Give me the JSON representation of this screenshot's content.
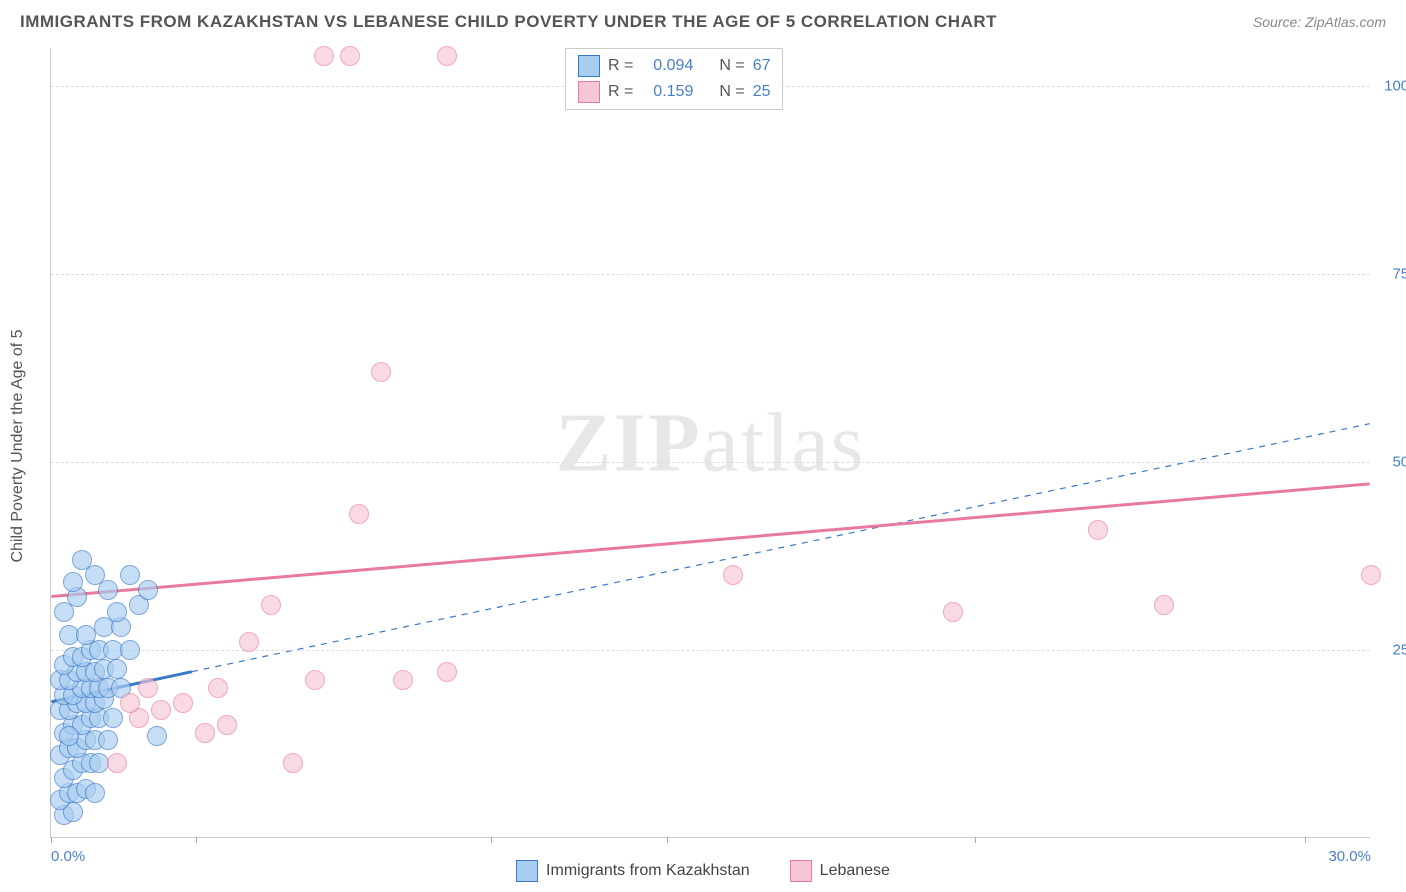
{
  "title": "IMMIGRANTS FROM KAZAKHSTAN VS LEBANESE CHILD POVERTY UNDER THE AGE OF 5 CORRELATION CHART",
  "source_label": "Source: ZipAtlas.com",
  "y_axis_label": "Child Poverty Under the Age of 5",
  "watermark_zip": "ZIP",
  "watermark_atlas": "atlas",
  "xlim": [
    0,
    30
  ],
  "ylim": [
    0,
    105
  ],
  "y_ticks": [
    {
      "v": 25,
      "label": "25.0%"
    },
    {
      "v": 50,
      "label": "50.0%"
    },
    {
      "v": 75,
      "label": "75.0%"
    },
    {
      "v": 100,
      "label": "100.0%"
    }
  ],
  "x_ticks": [
    0,
    3.3,
    10,
    14,
    21,
    28.5
  ],
  "x_tick_labels": [
    {
      "v": 0,
      "label": "0.0%"
    },
    {
      "v": 30,
      "label": "30.0%"
    }
  ],
  "series": [
    {
      "name": "Immigrants from Kazakhstan",
      "fill": "#a8cdf0",
      "stroke": "#3a78c9",
      "marker_radius": 10,
      "opacity": 0.65,
      "points": [
        [
          0.3,
          3
        ],
        [
          0.5,
          3.5
        ],
        [
          0.2,
          5
        ],
        [
          0.4,
          6
        ],
        [
          0.6,
          6
        ],
        [
          0.8,
          6.5
        ],
        [
          1.0,
          6
        ],
        [
          0.3,
          8
        ],
        [
          0.5,
          9
        ],
        [
          0.7,
          10
        ],
        [
          0.9,
          10
        ],
        [
          1.1,
          10
        ],
        [
          0.2,
          11
        ],
        [
          0.4,
          12
        ],
        [
          0.6,
          12
        ],
        [
          0.8,
          13
        ],
        [
          1.0,
          13
        ],
        [
          1.3,
          13
        ],
        [
          0.3,
          14
        ],
        [
          0.5,
          15
        ],
        [
          0.7,
          15
        ],
        [
          0.9,
          16
        ],
        [
          1.1,
          16
        ],
        [
          1.4,
          16
        ],
        [
          0.2,
          17
        ],
        [
          0.4,
          17
        ],
        [
          0.6,
          18
        ],
        [
          0.8,
          18
        ],
        [
          1.0,
          18
        ],
        [
          1.2,
          18.5
        ],
        [
          0.3,
          19
        ],
        [
          0.5,
          19
        ],
        [
          0.7,
          20
        ],
        [
          0.9,
          20
        ],
        [
          1.1,
          20
        ],
        [
          1.3,
          20
        ],
        [
          1.6,
          20
        ],
        [
          0.2,
          21
        ],
        [
          0.4,
          21
        ],
        [
          0.6,
          22
        ],
        [
          0.8,
          22
        ],
        [
          1.0,
          22
        ],
        [
          1.2,
          22.5
        ],
        [
          1.5,
          22.5
        ],
        [
          0.3,
          23
        ],
        [
          0.5,
          24
        ],
        [
          0.7,
          24
        ],
        [
          0.9,
          25
        ],
        [
          1.1,
          25
        ],
        [
          1.4,
          25
        ],
        [
          1.8,
          25
        ],
        [
          0.4,
          27
        ],
        [
          0.8,
          27
        ],
        [
          1.2,
          28
        ],
        [
          1.6,
          28
        ],
        [
          0.3,
          30
        ],
        [
          1.5,
          30
        ],
        [
          2.0,
          31
        ],
        [
          0.6,
          32
        ],
        [
          1.3,
          33
        ],
        [
          2.2,
          33
        ],
        [
          0.5,
          34
        ],
        [
          1.0,
          35
        ],
        [
          1.8,
          35
        ],
        [
          0.7,
          37
        ],
        [
          0.4,
          13.5
        ],
        [
          2.4,
          13.5
        ]
      ],
      "trend": {
        "x1": 0,
        "y1": 18,
        "x2": 3.2,
        "y2": 22,
        "dashed_extend": {
          "x2": 30,
          "y2": 55
        },
        "width": 3
      }
    },
    {
      "name": "Lebanese",
      "fill": "#f6c5d6",
      "stroke": "#e87aa0",
      "marker_radius": 10,
      "opacity": 0.65,
      "points": [
        [
          1.5,
          10
        ],
        [
          2.0,
          16
        ],
        [
          2.5,
          17
        ],
        [
          1.8,
          18
        ],
        [
          3.0,
          18
        ],
        [
          2.2,
          20
        ],
        [
          3.5,
          14
        ],
        [
          4.0,
          15
        ],
        [
          3.8,
          20
        ],
        [
          4.5,
          26
        ],
        [
          5.0,
          31
        ],
        [
          5.5,
          10
        ],
        [
          6.0,
          21
        ],
        [
          7.0,
          43
        ],
        [
          7.5,
          62
        ],
        [
          8.0,
          21
        ],
        [
          9.0,
          22
        ],
        [
          6.2,
          104
        ],
        [
          6.8,
          104
        ],
        [
          9.0,
          104
        ],
        [
          15.5,
          35
        ],
        [
          20.5,
          30
        ],
        [
          23.8,
          41
        ],
        [
          25.3,
          31
        ],
        [
          30,
          35
        ]
      ],
      "trend": {
        "x1": 0,
        "y1": 32,
        "x2": 30,
        "y2": 47,
        "width": 3
      }
    }
  ],
  "stats_legend": [
    {
      "series": 0,
      "R_label": "R =",
      "R": "0.094",
      "N_label": "N =",
      "N": "67"
    },
    {
      "series": 1,
      "R_label": "R =",
      "R": "0.159",
      "N_label": "N =",
      "N": "25"
    }
  ]
}
